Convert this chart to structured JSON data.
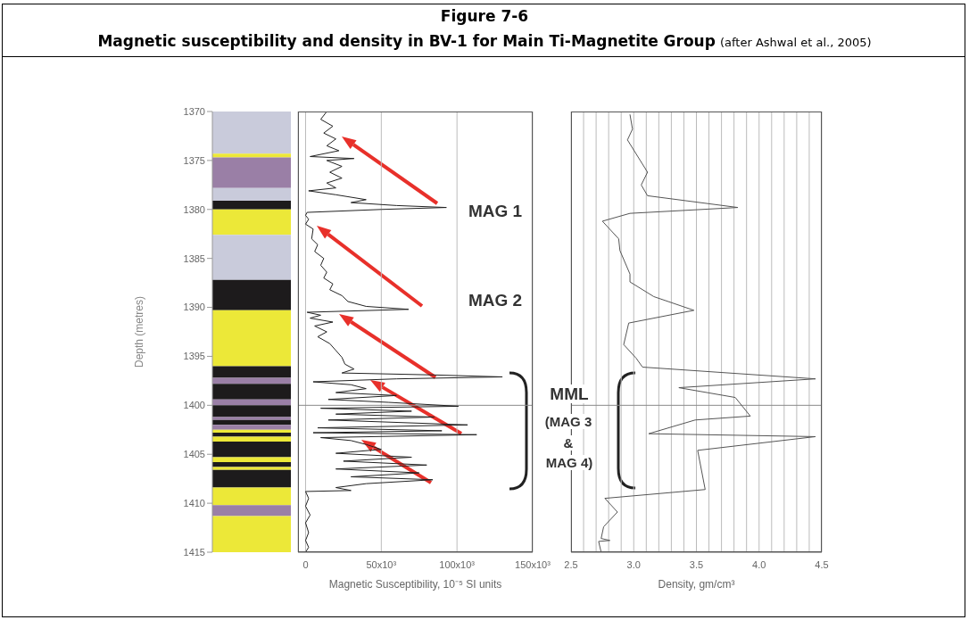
{
  "chart_data": [
    {
      "type": "bar",
      "ylabel": "Depth (metres)",
      "ylim": [
        1415,
        1370
      ],
      "yticks": [
        1370,
        1375,
        1380,
        1385,
        1390,
        1395,
        1400,
        1405,
        1410,
        1415
      ],
      "tick_labels": "y",
      "categories": [
        null
      ],
      "series": [
        {
          "color": "#c9cbdb",
          "base": [
            1370
          ],
          "values": [
            4.3
          ]
        },
        {
          "color": "#ece838",
          "base": [
            1374.3
          ],
          "values": [
            0.4
          ]
        },
        {
          "color": "#9a7fa6",
          "base": [
            1374.7
          ],
          "values": [
            3.1
          ]
        },
        {
          "color": "#c9cbdb",
          "base": [
            1377.8
          ],
          "values": [
            1.3
          ]
        },
        {
          "color": "#1d1b1c",
          "base": [
            1379.1
          ],
          "values": [
            0.9
          ]
        },
        {
          "color": "#ece838",
          "base": [
            1380
          ],
          "values": [
            2.6
          ]
        },
        {
          "color": "#c9cbdb",
          "base": [
            1382.6
          ],
          "values": [
            4.6
          ]
        },
        {
          "color": "#1d1b1c",
          "base": [
            1387.2
          ],
          "values": [
            3.1
          ]
        },
        {
          "color": "#ece838",
          "base": [
            1390.3
          ],
          "values": [
            5.7
          ]
        },
        {
          "color": "#1d1b1c",
          "base": [
            1396
          ],
          "values": [
            1.2
          ]
        },
        {
          "color": "#9a7fa6",
          "base": [
            1397.2
          ],
          "values": [
            0.6
          ]
        },
        {
          "color": "#1d1b1c",
          "base": [
            1397.8
          ],
          "values": [
            1.6
          ]
        },
        {
          "color": "#9a7fa6",
          "base": [
            1399.4
          ],
          "values": [
            0.6
          ]
        },
        {
          "color": "#1d1b1c",
          "base": [
            1400
          ],
          "values": [
            1.2
          ]
        },
        {
          "color": "#9a7fa6",
          "base": [
            1401.2
          ],
          "values": [
            0.3
          ]
        },
        {
          "color": "#1d1b1c",
          "base": [
            1401.5
          ],
          "values": [
            0.5
          ]
        },
        {
          "color": "#9a7fa6",
          "base": [
            1402
          ],
          "values": [
            0.5
          ]
        },
        {
          "color": "#ece838",
          "base": [
            1402.5
          ],
          "values": [
            0.3
          ]
        },
        {
          "color": "#1d1b1c",
          "base": [
            1402.8
          ],
          "values": [
            0.4
          ]
        },
        {
          "color": "#ece838",
          "base": [
            1403.2
          ],
          "values": [
            0.5
          ]
        },
        {
          "color": "#1d1b1c",
          "base": [
            1403.7
          ],
          "values": [
            1.6
          ]
        },
        {
          "color": "#ece838",
          "base": [
            1405.3
          ],
          "values": [
            0.5
          ]
        },
        {
          "color": "#1d1b1c",
          "base": [
            1405.8
          ],
          "values": [
            0.5
          ]
        },
        {
          "color": "#ece838",
          "base": [
            1406.3
          ],
          "values": [
            0.3
          ]
        },
        {
          "color": "#1d1b1c",
          "base": [
            1406.6
          ],
          "values": [
            1.8
          ]
        },
        {
          "color": "#ece838",
          "base": [
            1408.4
          ],
          "values": [
            1.8
          ]
        },
        {
          "color": "#9a7fa6",
          "base": [
            1410.2
          ],
          "values": [
            1.1
          ]
        },
        {
          "color": "#ece838",
          "base": [
            1411.3
          ],
          "values": [
            3.7
          ]
        }
      ]
    },
    {
      "type": "line",
      "title": "Figure 7-6",
      "subtitle": "Magnetic susceptibility and density in BV-1 for Main Ti-Magnetite Group",
      "xlabel": "Magnetic Susceptibility, 10⁻⁵ SI units",
      "xlim": [
        -5000,
        150000
      ],
      "xticks": [
        0,
        {
          "value": 50000,
          "label": "50x10³"
        },
        {
          "value": 100000,
          "label": "100x10³"
        },
        {
          "value": 150000,
          "label": "150x10³"
        }
      ],
      "ylim": [
        1415,
        1370
      ],
      "tick_labels": "x",
      "grid": "x",
      "ref_lines": [
        {
          "axis": "y",
          "value": 1400,
          "color": "#8a8a8a"
        }
      ],
      "annotations": [
        "MAG 1",
        "MAG 2",
        "MML",
        "(MAG 3",
        "&",
        "MAG 4)",
        "(after Ashwal et al., 2005)"
      ],
      "series": [
        {
          "color": "#222222",
          "x": [
            14000,
            10000,
            18000,
            12000,
            20000,
            14000,
            22000,
            3000,
            32000,
            14000,
            24000,
            16000,
            24000,
            14000,
            20000,
            2000,
            20000,
            40000,
            30000,
            60000,
            93000,
            50000,
            1000,
            0,
            2000,
            0,
            5000,
            4000,
            8000,
            6000,
            12000,
            10000,
            14000,
            12000,
            18000,
            16000,
            24000,
            28000,
            40000,
            68000,
            1000,
            10000,
            3000,
            18000,
            6000,
            14000,
            8000,
            16000,
            20000,
            24000,
            26000,
            32000,
            24000,
            85000,
            130000,
            60000,
            5000,
            30000,
            40000,
            20000,
            60000,
            15000,
            55000,
            101000,
            10000,
            70000,
            20000,
            85000,
            15000,
            107000,
            8000,
            90000,
            5000,
            113000,
            10000,
            30000,
            40000,
            50000,
            20000,
            70000,
            25000,
            80000,
            20000,
            75000,
            30000,
            84000,
            40000,
            20000,
            30000,
            0,
            2000,
            0,
            3000,
            0,
            2000,
            0,
            2000,
            0
          ],
          "values": [
            1370,
            1370.8,
            1371.5,
            1372.2,
            1372.8,
            1373.5,
            1374,
            1374.6,
            1374.8,
            1375,
            1375.6,
            1376.2,
            1376.8,
            1377.3,
            1377.8,
            1378.1,
            1378.5,
            1379,
            1379.3,
            1379.6,
            1379.8,
            1380,
            1380.3,
            1380.6,
            1381,
            1381.5,
            1382,
            1383,
            1383.6,
            1384.3,
            1385,
            1385.7,
            1386.4,
            1387,
            1387.6,
            1388.2,
            1388.8,
            1389.4,
            1389.9,
            1390.2,
            1390.5,
            1390.8,
            1391.1,
            1391.5,
            1391.9,
            1392.5,
            1393,
            1393.7,
            1394.4,
            1395.1,
            1395.8,
            1396.3,
            1396.7,
            1396.9,
            1397.1,
            1397.3,
            1397.6,
            1397.9,
            1398.3,
            1398.7,
            1399,
            1399.4,
            1399.7,
            1400.1,
            1400.3,
            1400.6,
            1400.9,
            1401.2,
            1401.5,
            1402,
            1402.3,
            1402.6,
            1402.8,
            1403,
            1403.3,
            1403.6,
            1404,
            1404.5,
            1404.9,
            1405.3,
            1405.7,
            1406.1,
            1406.5,
            1406.9,
            1407.3,
            1407.6,
            1408,
            1408.4,
            1408.7,
            1408.8,
            1409.5,
            1410.3,
            1411.2,
            1412,
            1413,
            1413.8,
            1414.5,
            1415
          ]
        }
      ]
    },
    {
      "type": "line",
      "xlabel": "Density, gm/cm³",
      "xlim": [
        2.5,
        4.5
      ],
      "xticks": [
        2.5,
        {
          "value": 2.6,
          "label": null
        },
        {
          "value": 2.7,
          "label": null
        },
        {
          "value": 2.8,
          "label": null
        },
        {
          "value": 2.9,
          "label": null
        },
        {
          "value": 3,
          "label": "3.0"
        },
        {
          "value": 3.1,
          "label": null
        },
        {
          "value": 3.2,
          "label": null
        },
        {
          "value": 3.3,
          "label": null
        },
        {
          "value": 3.4,
          "label": null
        },
        3.5,
        {
          "value": 3.6,
          "label": null
        },
        {
          "value": 3.7,
          "label": null
        },
        {
          "value": 3.8,
          "label": null
        },
        {
          "value": 3.9,
          "label": null
        },
        {
          "value": 4,
          "label": "4.0"
        },
        {
          "value": 4.1,
          "label": null
        },
        {
          "value": 4.2,
          "label": null
        },
        {
          "value": 4.3,
          "label": null
        },
        {
          "value": 4.4,
          "label": null
        },
        4.5
      ],
      "ylim": [
        1415,
        1370
      ],
      "tick_labels": "x",
      "grid": "x",
      "ref_lines": [
        {
          "axis": "y",
          "value": 1400,
          "color": "#8a8a8a"
        }
      ],
      "series": [
        {
          "color": "#555555",
          "x": [
            2.97,
            2.99,
            2.95,
            3.11,
            3.06,
            3.11,
            3.83,
            2.97,
            2.75,
            2.88,
            2.89,
            2.97,
            2.97,
            3.16,
            3.48,
            2.96,
            2.92,
            3.02,
            3.07,
            4.45,
            3.36,
            3.81,
            3.93,
            3.49,
            3.12,
            4.45,
            3.51,
            3.57,
            2.77,
            2.87,
            2.76,
            2.74,
            2.81,
            2.72,
            2.74
          ],
          "values": [
            1370.3,
            1371.8,
            1372.9,
            1376.2,
            1377.5,
            1378.6,
            1379.8,
            1380.4,
            1381.2,
            1383,
            1384.2,
            1386.6,
            1387.4,
            1388.9,
            1390.3,
            1391.6,
            1393.8,
            1395.2,
            1396.1,
            1397.3,
            1398.2,
            1399.2,
            1401.1,
            1401.5,
            1402.9,
            1403.2,
            1404.6,
            1408.6,
            1409.5,
            1410.9,
            1412.4,
            1413.6,
            1413.8,
            1413.9,
            1415
          ]
        }
      ]
    }
  ]
}
